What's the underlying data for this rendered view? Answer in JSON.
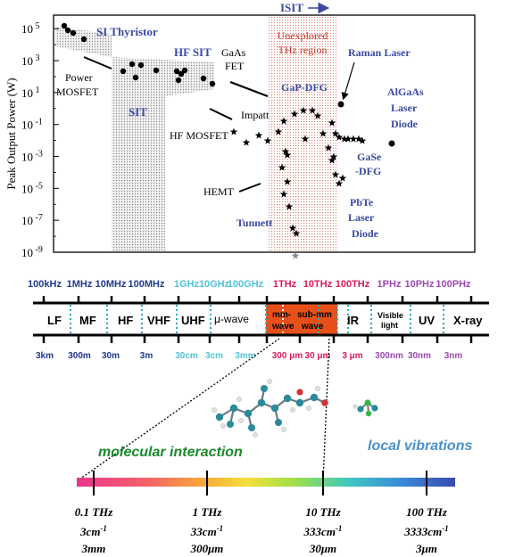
{
  "plot": {
    "top_label": "ISIT",
    "ylabel": "Peak Output Power (W)",
    "y_ticks": [
      {
        "base": "10",
        "exp": " 5",
        "value": 5
      },
      {
        "base": "10",
        "exp": " 3",
        "value": 3
      },
      {
        "base": "10",
        "exp": " 1",
        "value": 1
      },
      {
        "base": "10",
        "exp": " -1",
        "value": -1
      },
      {
        "base": "10",
        "exp": " -3",
        "value": -3
      },
      {
        "base": "10",
        "exp": " -5",
        "value": -5
      },
      {
        "base": "10",
        "exp": " -7",
        "value": -7
      },
      {
        "base": "10",
        "exp": " -9",
        "value": -9
      }
    ],
    "unexplored_line1": "Unexplored",
    "unexplored_line2": "THz region",
    "labels": {
      "si_thyristor": "SI Thyristor",
      "hf_sit": "HF SIT",
      "gaas_fet_1": "GaAs",
      "gaas_fet_2": "FET",
      "power_mosfet_1": "Power",
      "power_mosfet_2": "MOSFET",
      "sit": "SIT",
      "impatt": "Impatt",
      "hf_mosfet": "HF MOSFET",
      "hemt": "HEMT",
      "tunnett": "Tunnett",
      "gap_dfg": "GaP-DFG",
      "raman_laser": "Raman Laser",
      "algaas_1": "AlGaAs",
      "algaas_2": "Laser",
      "algaas_3": "Diode",
      "gase_1": "GaSe",
      "gase_2": "-DFG",
      "pbte_1": "PbTe",
      "pbte_2": "Laser",
      "pbte_3": "Diode"
    },
    "colors": {
      "device_label": "#3a4aa0",
      "unexplored": "#c0392b",
      "band": "#c0392b"
    }
  },
  "spectrum": {
    "frequencies": [
      {
        "text": "100kHz",
        "color": "#1f3a8a"
      },
      {
        "text": "1MHz",
        "color": "#1f3a8a"
      },
      {
        "text": "10MHz",
        "color": "#1f3a8a"
      },
      {
        "text": "100MHz",
        "color": "#1f3a8a"
      },
      {
        "text": "1GHz",
        "color": "#4fc3d9"
      },
      {
        "text": "10GHz",
        "color": "#4fc3d9"
      },
      {
        "text": "100GHz",
        "color": "#4fc3d9"
      },
      {
        "text": "1THz",
        "color": "#d81b60"
      },
      {
        "text": "10THz",
        "color": "#d81b60"
      },
      {
        "text": "100THz",
        "color": "#d81b60"
      },
      {
        "text": "1PHz",
        "color": "#9c4ab0"
      },
      {
        "text": "10PHz",
        "color": "#9c4ab0"
      },
      {
        "text": "100PHz",
        "color": "#9c4ab0"
      }
    ],
    "bands": {
      "lf": "LF",
      "mf": "MF",
      "hf": "HF",
      "vhf": "VHF",
      "uhf": "UHF",
      "uwave": "μ-wave",
      "mmwave_1": "mm-",
      "mmwave_2": "wave",
      "submm_1": "sub-mm",
      "submm_2": "wave",
      "ir": "IR",
      "visible_1": "Visible",
      "visible_2": "light",
      "uv": "UV",
      "xray": "X-ray"
    },
    "wavelengths": [
      {
        "text": "3km",
        "color": "#1f3a8a"
      },
      {
        "text": "300m",
        "color": "#1f3a8a"
      },
      {
        "text": "30m",
        "color": "#1f3a8a"
      },
      {
        "text": "3m",
        "color": "#1f3a8a"
      },
      {
        "text": "30cm",
        "color": "#4fc3d9"
      },
      {
        "text": "3cm",
        "color": "#4fc3d9"
      },
      {
        "text": "3mm",
        "color": "#4fc3d9"
      },
      {
        "text": "300 μm",
        "color": "#d81b60"
      },
      {
        "text": "30 μm",
        "color": "#d81b60"
      },
      {
        "text": "3 μm",
        "color": "#d81b60"
      },
      {
        "text": "300nm",
        "color": "#9c4ab0"
      },
      {
        "text": "30nm",
        "color": "#9c4ab0"
      },
      {
        "text": "3nm",
        "color": "#9c4ab0"
      }
    ],
    "thz_box_color": "#e8501a"
  },
  "bottom": {
    "molecular": "molecular interaction",
    "local": "local vibrations",
    "molecular_color": "#1a8a2a",
    "local_color": "#4a90c8",
    "ticks": [
      {
        "freq": "0.1 THz",
        "wn": "3cm",
        "wn_exp": "-1",
        "wl": "3mm"
      },
      {
        "freq": "1 THz",
        "wn": "33cm",
        "wn_exp": "-1",
        "wl": "300μm"
      },
      {
        "freq": "10 THz",
        "wn": "333cm",
        "wn_exp": "-1",
        "wl": "30μm"
      },
      {
        "freq": "100 THz",
        "wn": "3333cm",
        "wn_exp": "-1",
        "wl": "3μm"
      }
    ]
  }
}
